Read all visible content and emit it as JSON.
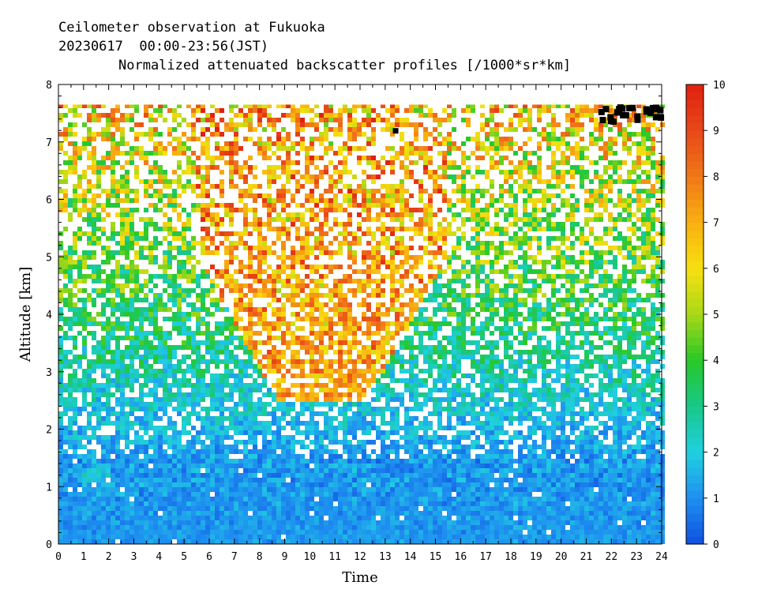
{
  "header": {
    "line1": "Ceilometer observation at Fukuoka",
    "line2": "20230617  00:00-23:56(JST)"
  },
  "chart_data": {
    "type": "heatmap",
    "title": "Normalized attenuated backscatter profiles [/1000*sr*km]",
    "xlabel": "Time",
    "ylabel": "Altitude [km]",
    "xlim": [
      0,
      24
    ],
    "ylim": [
      0,
      8
    ],
    "x_ticks": [
      0,
      1,
      2,
      3,
      4,
      5,
      6,
      7,
      8,
      9,
      10,
      11,
      12,
      13,
      14,
      15,
      16,
      17,
      18,
      19,
      20,
      21,
      22,
      23,
      24
    ],
    "y_ticks": [
      0,
      1,
      2,
      3,
      4,
      5,
      6,
      7,
      8
    ],
    "max_altitude_observed": 7.65,
    "colorbar": {
      "range": [
        0,
        10
      ],
      "ticks": [
        0,
        1,
        2,
        3,
        4,
        5,
        6,
        7,
        8,
        9,
        10
      ],
      "colors": [
        "#1050e0",
        "#1e8ff0",
        "#20d0e0",
        "#18c888",
        "#28c828",
        "#a8d818",
        "#f8e010",
        "#f8b010",
        "#f07818",
        "#e84818",
        "#e02010"
      ]
    },
    "grid": false,
    "legend": "right colorbar",
    "features": {
      "boundary_layer": {
        "altitude_top_km": 1.5,
        "value": 1.0
      },
      "elevated_layer": {
        "time_h": [
          0.7,
          2.0
        ],
        "altitude_km": [
          1.1,
          1.3
        ],
        "value": 2.0
      },
      "high_signal_region": {
        "time_h": [
          5.5,
          15.5
        ],
        "altitude_km": [
          2.5,
          7.65
        ],
        "value": 8.0
      },
      "clutter_marks": [
        {
          "time_h": 13.4,
          "altitude_km": 7.2
        },
        {
          "time_h": [
            21.6,
            24
          ],
          "altitude_km": [
            7.35,
            7.6
          ]
        }
      ]
    }
  }
}
